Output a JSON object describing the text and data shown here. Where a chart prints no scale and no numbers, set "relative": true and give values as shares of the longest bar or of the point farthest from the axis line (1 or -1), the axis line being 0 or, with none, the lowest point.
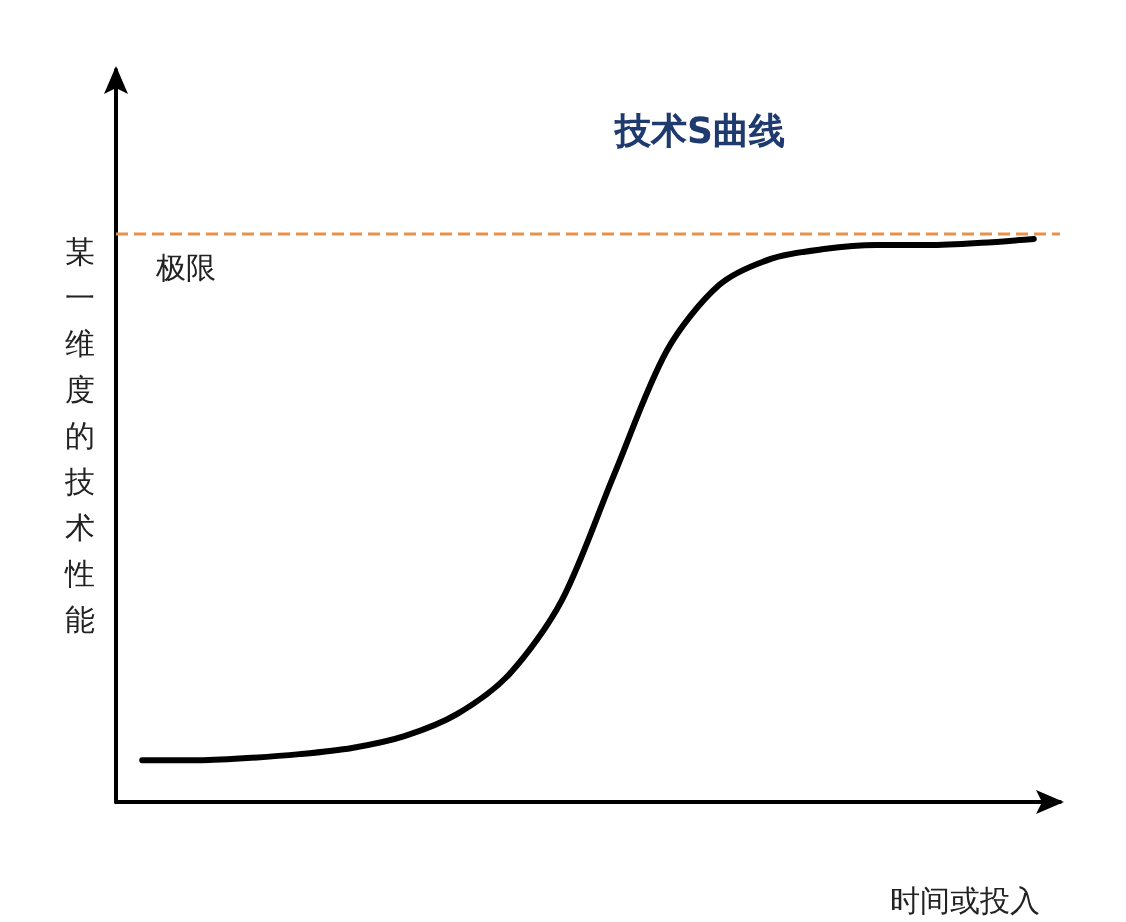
{
  "chart_data": {
    "type": "line",
    "title": "技术S曲线",
    "xlabel": "时间或投入",
    "ylabel": "某一维度的技术性能",
    "relative": true,
    "categories": [
      null,
      null,
      null,
      null,
      null,
      null,
      null,
      null,
      null,
      null,
      null,
      null,
      null,
      null,
      null,
      null,
      null,
      null
    ],
    "series": [
      {
        "color": "#000000",
        "values": [
          0.074,
          0.074,
          0.078,
          0.085,
          0.096,
          0.117,
          0.156,
          0.227,
          0.358,
          0.582,
          0.801,
          0.918,
          0.965,
          0.982,
          0.989,
          0.989,
          0.993,
          1
        ]
      }
    ],
    "ref_lines": [
      {
        "axis": "y",
        "value": 1.01,
        "label": "极限",
        "color": "#e8914a",
        "line_style": "dashed"
      }
    ],
    "grid": false,
    "marker": "none",
    "line_style": "solid"
  }
}
